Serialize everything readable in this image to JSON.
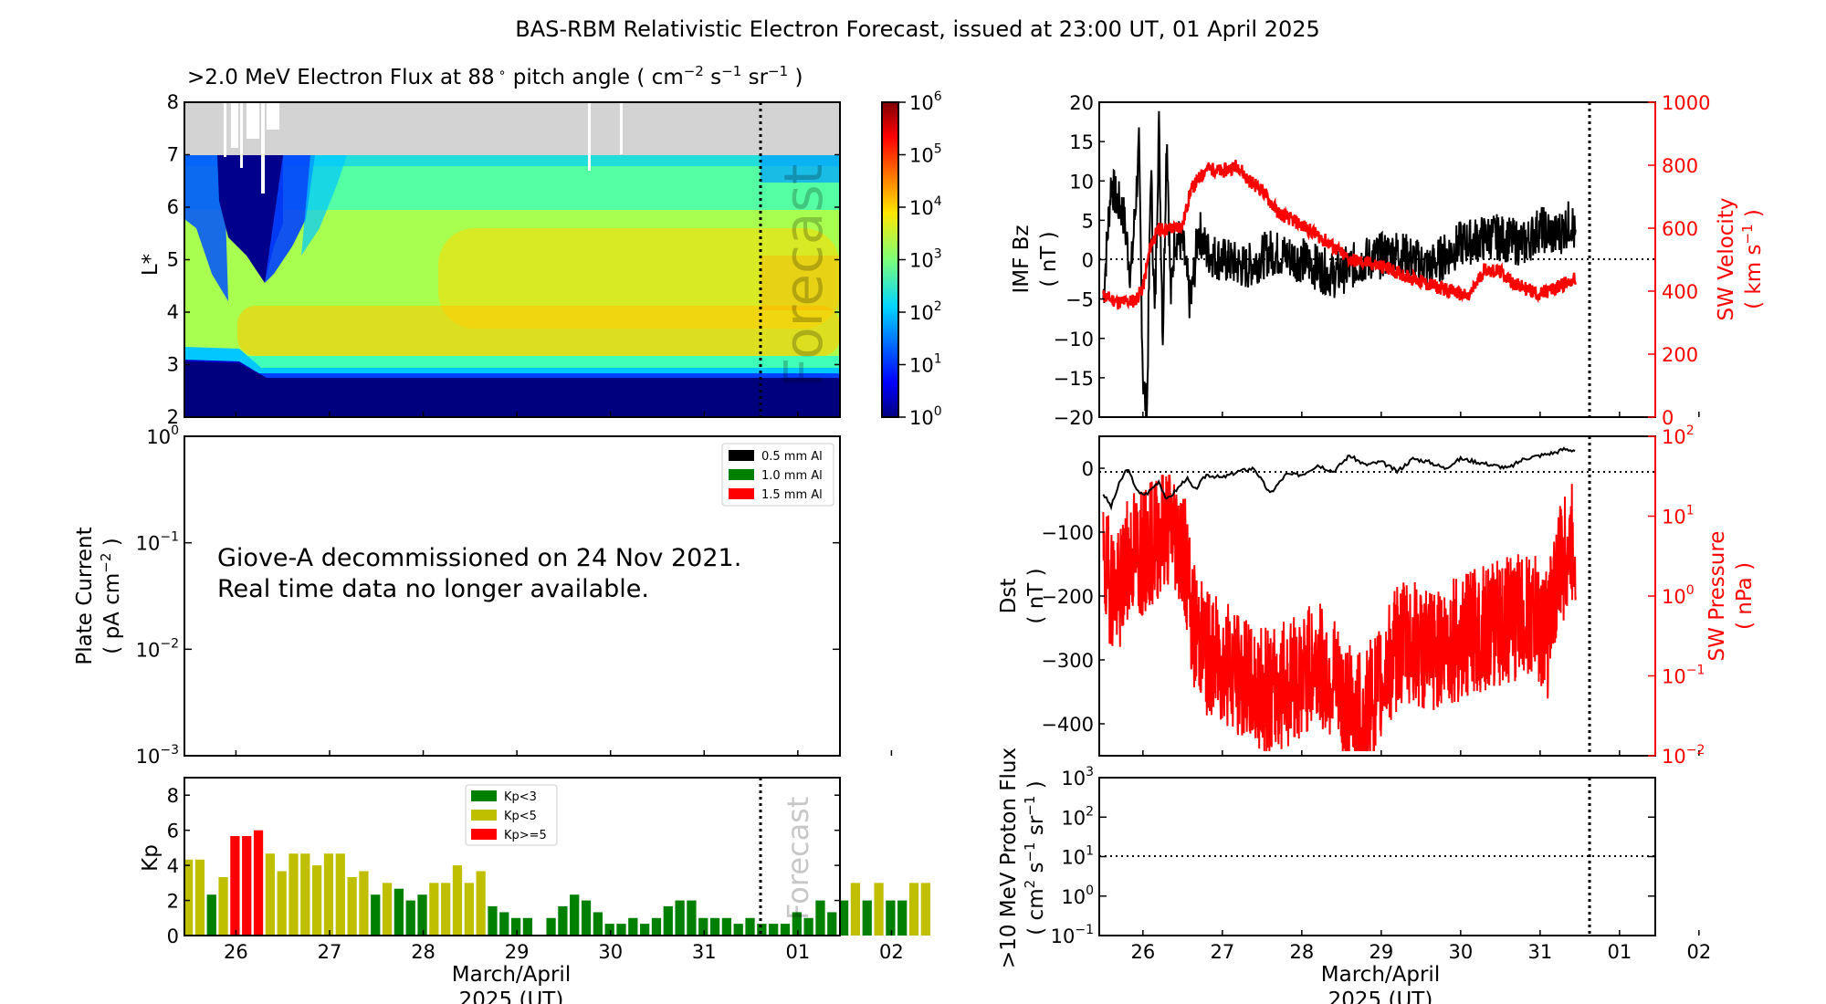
{
  "title": "BAS-RBM Relativistic Electron Forecast, issued at 23:00 UT, 01 April 2025",
  "colors": {
    "red": "#ff0000",
    "green": "#008000",
    "olive": "#bfbf00",
    "black": "#000000",
    "grey_fill": "#d3d3d3"
  },
  "x_axis": {
    "tick_labels": [
      "26",
      "27",
      "28",
      "29",
      "30",
      "31",
      "01",
      "02"
    ],
    "xlabel_line1": "March/April",
    "xlabel_line2": "2025 (UT)",
    "range_days": [
      25.45,
      32.45
    ],
    "forecast_line_day": 31.46
  },
  "forecast_label": "Forecast",
  "chart_data": [
    {
      "id": "electron-flux",
      "type": "heatmap",
      "title": ">2.0 MeV Electron Flux at 88 ° pitch angle ( cm^-2 s^-1 sr^-1 )",
      "title_parts": {
        "main": ">2.0 MeV Electron Flux at 88",
        "deg": "∘",
        "pitch": " pitch angle ( cm",
        "e1": "−2",
        "s": " s",
        "e2": "−1",
        "sr": " sr",
        "e3": "−1",
        "close": " )"
      },
      "ylabel": "L*",
      "ylim": [
        2,
        8
      ],
      "yticks": [
        "2",
        "3",
        "4",
        "5",
        "6",
        "7",
        "8"
      ],
      "no_data_region_L": [
        7,
        8
      ],
      "colorbar": {
        "scale": "log",
        "range": [
          1,
          1000000
        ],
        "tick_labels": [
          "10^0",
          "10^1",
          "10^2",
          "10^3",
          "10^4",
          "10^5",
          "10^6"
        ],
        "colormap": "jet"
      },
      "features": [
        {
          "desc": "slot region low flux below L*",
          "L_max_start": 3.1,
          "L_max_end": 2.6
        },
        {
          "desc": "outer belt peak",
          "L_center": 4.8,
          "flux_approx": 20000
        },
        {
          "desc": "inner peak band",
          "L_center": 3.6,
          "flux_approx": 20000
        },
        {
          "desc": "dropout day 26",
          "L_min": 4.6,
          "days": [
            25.9,
            26.6
          ]
        }
      ]
    },
    {
      "id": "plate-current",
      "type": "line",
      "ylabel_line1": "Plate Current",
      "ylabel_line2": "( pA cm^-2 )",
      "yscale": "log",
      "ylim": [
        0.001,
        1
      ],
      "yticks": [
        "10^-3",
        "10^-2",
        "10^-1",
        "10^0"
      ],
      "legend": [
        {
          "label": "0.5 mm Al",
          "color": "#000000"
        },
        {
          "label": "1.0 mm Al",
          "color": "#008000"
        },
        {
          "label": "1.5 mm Al",
          "color": "#ff0000"
        }
      ],
      "legend_position": "top-right",
      "message_line1": "Giove-A decommissioned on 24 Nov 2021.",
      "message_line2": "Real time data no longer available.",
      "series": []
    },
    {
      "id": "kp",
      "type": "bar",
      "ylabel": "Kp",
      "ylim": [
        0,
        9
      ],
      "yticks": [
        "0",
        "2",
        "4",
        "6",
        "8"
      ],
      "bin_hours": 3,
      "start_day": 25.5,
      "values": [
        4.33,
        4.33,
        2.33,
        3.33,
        5.67,
        5.67,
        6.0,
        4.67,
        3.67,
        4.67,
        4.67,
        4.0,
        4.67,
        4.67,
        3.33,
        3.67,
        2.33,
        3.0,
        2.67,
        2.0,
        2.33,
        3.0,
        3.0,
        4.0,
        3.0,
        3.67,
        1.67,
        1.33,
        1.0,
        1.0,
        0,
        1.0,
        1.67,
        2.33,
        2.0,
        1.33,
        0.67,
        0.67,
        1.0,
        0.67,
        1.0,
        1.67,
        2.0,
        2.0,
        1.0,
        1.0,
        1.0,
        0.67,
        1.0,
        0.67,
        0.67,
        0.67,
        1.33,
        1.0,
        2.0,
        1.33,
        2.0,
        3.0,
        2.0,
        3.0,
        2.0,
        2.0,
        3.0,
        3.0
      ],
      "legend": [
        {
          "label": "Kp<3",
          "color": "#008000"
        },
        {
          "label": "Kp<5",
          "color": "#bfbf00"
        },
        {
          "label": "Kp>=5",
          "color": "#ff0000"
        }
      ],
      "legend_position": "top-center"
    },
    {
      "id": "imf-sw",
      "type": "line",
      "ylabel_left_line1": "IMF Bz",
      "ylabel_left_line2": "( nT )",
      "ylim_left": [
        -20,
        20
      ],
      "yticks_left": [
        "−20",
        "−15",
        "−10",
        "−5",
        "0",
        "5",
        "10",
        "15",
        "20"
      ],
      "ylabel_right_line1": "SW Velocity",
      "ylabel_right_line2": "( km s^-1 )",
      "ylim_right": [
        0,
        1000
      ],
      "yticks_right": [
        "0",
        "200",
        "400",
        "600",
        "800",
        "1000"
      ],
      "series": [
        {
          "name": "IMF Bz",
          "axis": "left",
          "color": "#000000",
          "x": [
            25.5,
            25.6,
            25.65,
            25.75,
            25.85,
            25.95,
            26.0,
            26.05,
            26.1,
            26.15,
            26.2,
            26.25,
            26.3,
            26.35,
            26.4,
            26.5,
            26.6,
            26.7,
            26.8,
            27.0,
            27.3,
            27.6,
            28.0,
            28.4,
            28.8,
            29.2,
            29.6,
            30.0,
            30.4,
            30.8,
            31.0,
            31.2,
            31.4,
            31.45
          ],
          "y": [
            -5,
            10,
            8,
            6,
            -2,
            14,
            -15,
            -20,
            12,
            -8,
            18,
            -10,
            17,
            -5,
            3,
            2,
            -6,
            4,
            1,
            0,
            -1,
            1,
            0,
            -2,
            0,
            1,
            -1,
            2,
            3,
            2,
            4,
            3,
            5,
            2
          ]
        },
        {
          "name": "SW Velocity",
          "axis": "right",
          "color": "#ff0000",
          "x": [
            25.5,
            25.7,
            25.9,
            26.0,
            26.1,
            26.2,
            26.4,
            26.5,
            26.6,
            26.8,
            27.0,
            27.2,
            27.3,
            27.5,
            27.7,
            28.0,
            28.3,
            28.6,
            29.0,
            29.3,
            29.6,
            29.9,
            30.1,
            30.3,
            30.5,
            30.7,
            31.0,
            31.2,
            31.45
          ],
          "y": [
            385,
            365,
            370,
            410,
            550,
            595,
            600,
            610,
            720,
            790,
            780,
            800,
            760,
            720,
            650,
            610,
            560,
            500,
            480,
            450,
            420,
            400,
            380,
            470,
            460,
            420,
            390,
            410,
            440
          ]
        }
      ],
      "zero_line": true
    },
    {
      "id": "dst-pressure",
      "type": "line",
      "ylabel_left_line1": "Dst",
      "ylabel_left_line2": "( nT )",
      "ylim_left": [
        -450,
        50
      ],
      "yticks_left": [
        "−400",
        "−300",
        "−200",
        "−100",
        "0"
      ],
      "ylabel_right_line1": "SW Pressure",
      "ylabel_right_line2": "( nPa )",
      "yscale_right": "log",
      "ylim_right": [
        0.01,
        100
      ],
      "yticks_right": [
        "10^-2",
        "10^-1",
        "10^0",
        "10^1",
        "10^2"
      ],
      "series": [
        {
          "name": "Dst",
          "axis": "left",
          "color": "#000000",
          "x": [
            25.5,
            25.6,
            25.7,
            25.8,
            25.95,
            26.05,
            26.2,
            26.3,
            26.45,
            26.55,
            26.65,
            26.8,
            27.0,
            27.2,
            27.4,
            27.6,
            27.8,
            28.0,
            28.2,
            28.4,
            28.6,
            28.8,
            29.0,
            29.2,
            29.4,
            29.6,
            29.8,
            30.0,
            30.2,
            30.4,
            30.6,
            30.8,
            31.0,
            31.2,
            31.3,
            31.45
          ],
          "y": [
            -40,
            -60,
            -25,
            0,
            -40,
            -40,
            -20,
            -50,
            -30,
            -15,
            -35,
            -10,
            -15,
            -5,
            0,
            -40,
            -10,
            -10,
            5,
            -5,
            20,
            5,
            10,
            -5,
            15,
            10,
            0,
            15,
            10,
            5,
            0,
            15,
            20,
            25,
            30,
            28
          ]
        },
        {
          "name": "SW Pressure",
          "axis": "right",
          "color": "#ff0000",
          "x": [
            25.5,
            25.7,
            25.9,
            26.0,
            26.2,
            26.3,
            26.4,
            26.6,
            26.8,
            27.0,
            27.3,
            27.6,
            28.0,
            28.2,
            28.5,
            28.8,
            29.0,
            29.3,
            29.6,
            30.0,
            30.3,
            30.6,
            30.9,
            31.1,
            31.3,
            31.45
          ],
          "y": [
            2.0,
            1.0,
            4.0,
            3.0,
            6.0,
            8.0,
            7.0,
            0.5,
            0.2,
            0.15,
            0.08,
            0.06,
            0.1,
            0.15,
            0.05,
            0.03,
            0.08,
            0.3,
            0.2,
            0.3,
            0.4,
            0.5,
            0.6,
            0.3,
            3.0,
            5.0
          ]
        }
      ],
      "zero_line": true
    },
    {
      "id": "proton-flux",
      "type": "line",
      "ylabel_line1": ">10 MeV Proton Flux",
      "ylabel_line2": "( cm^2 s^-1 sr^-1 )",
      "yscale": "log",
      "ylim": [
        0.1,
        1000
      ],
      "yticks": [
        "10^-1",
        "10^0",
        "10^1",
        "10^2",
        "10^3"
      ],
      "threshold": 10,
      "series": []
    }
  ]
}
